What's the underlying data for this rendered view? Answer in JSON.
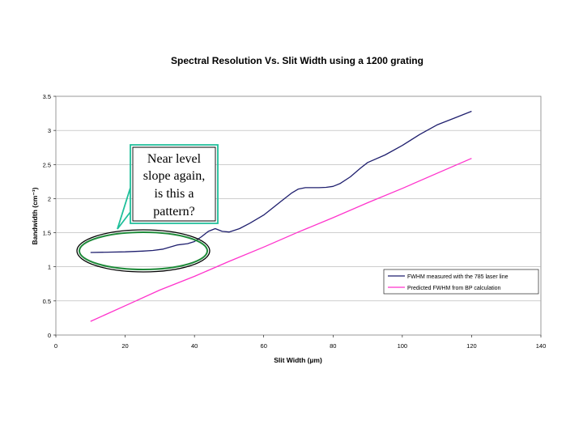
{
  "chart_data": {
    "type": "line",
    "title": "Spectral Resolution Vs. Slit Width using a 1200 grating",
    "xlabel": "Slit Width (µm)",
    "ylabel": "Bandwidth (cm⁻¹)",
    "xlim": [
      0,
      140
    ],
    "ylim": [
      0,
      3.5
    ],
    "xticks": [
      "0",
      "20",
      "40",
      "60",
      "80",
      "100",
      "120",
      "140"
    ],
    "yticks": [
      "0",
      "0.5",
      "1",
      "1.5",
      "2",
      "2.5",
      "3",
      "3.5"
    ],
    "grid": "horizontal",
    "legend_position": "bottom-right",
    "series": [
      {
        "name": "FWHM measured with the 785 laser line",
        "color": "#1f1f6e",
        "x": [
          10,
          15,
          20,
          25,
          28,
          31,
          33,
          35,
          38,
          40,
          42,
          44,
          46,
          48,
          50,
          53,
          56,
          60,
          65,
          68,
          70,
          72,
          76,
          78,
          80,
          82,
          85,
          88,
          90,
          95,
          100,
          105,
          110,
          115,
          120
        ],
        "y": [
          1.21,
          1.215,
          1.22,
          1.23,
          1.24,
          1.26,
          1.29,
          1.32,
          1.34,
          1.37,
          1.44,
          1.52,
          1.56,
          1.52,
          1.51,
          1.56,
          1.64,
          1.76,
          1.96,
          2.08,
          2.14,
          2.16,
          2.16,
          2.165,
          2.18,
          2.22,
          2.32,
          2.45,
          2.53,
          2.64,
          2.78,
          2.94,
          3.08,
          3.18,
          3.28
        ]
      },
      {
        "name": "Predicted FWHM from BP calculation",
        "color": "#ff33cc",
        "x": [
          10,
          20,
          30,
          40,
          50,
          60,
          70,
          80,
          90,
          100,
          110,
          120
        ],
        "y": [
          0.2,
          0.43,
          0.66,
          0.86,
          1.08,
          1.29,
          1.51,
          1.72,
          1.94,
          2.15,
          2.37,
          2.59
        ]
      }
    ]
  },
  "callout": {
    "lines": [
      "Near level",
      "slope again,",
      "is this a",
      "pattern?"
    ]
  }
}
